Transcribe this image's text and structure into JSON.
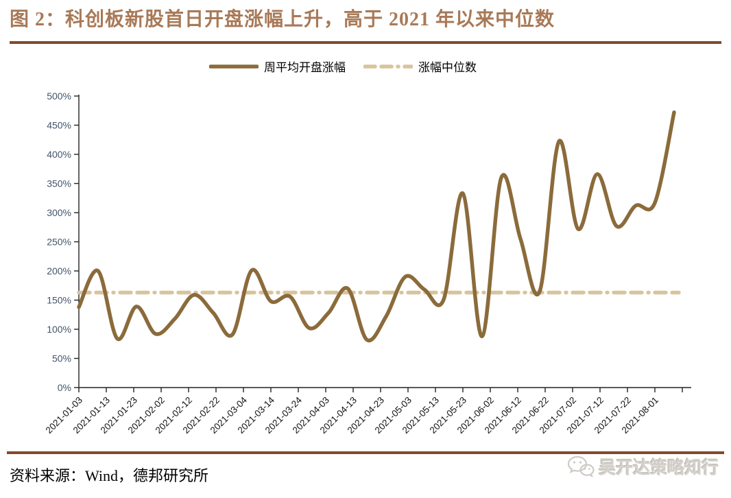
{
  "figure": {
    "title": "图 2：科创板新股首日开盘涨幅上升，高于 2021 年以来中位数",
    "title_color": "#A87957",
    "rule_color": "#82492A"
  },
  "legend": [
    {
      "label": "周平均开盘涨幅",
      "style": "solid",
      "color": "#8B6B3B"
    },
    {
      "label": "涨幅中位数",
      "style": "dashed",
      "color": "#D8C49C"
    }
  ],
  "chart_data": {
    "type": "line",
    "title": "",
    "xlabel": "",
    "ylabel": "",
    "ylim": [
      0,
      500
    ],
    "y_tick_step": 50,
    "y_tick_suffix": "%",
    "grid": false,
    "legend_position": "top-center",
    "axis_color": "#222222",
    "y_label_color": "#44546A",
    "x_label_color": "#111111",
    "x": [
      "2021-01-03",
      "2021-01-10",
      "2021-01-17",
      "2021-01-24",
      "2021-01-31",
      "2021-02-07",
      "2021-02-14",
      "2021-02-21",
      "2021-02-28",
      "2021-03-07",
      "2021-03-14",
      "2021-03-21",
      "2021-03-28",
      "2021-04-04",
      "2021-04-11",
      "2021-04-18",
      "2021-04-25",
      "2021-05-02",
      "2021-05-09",
      "2021-05-16",
      "2021-05-23",
      "2021-05-30",
      "2021-06-06",
      "2021-06-13",
      "2021-06-20",
      "2021-06-27",
      "2021-07-04",
      "2021-07-11",
      "2021-07-18",
      "2021-07-25",
      "2021-08-01",
      "2021-08-08"
    ],
    "series": [
      {
        "name": "周平均开盘涨幅",
        "style": "solid",
        "color": "#8B6B3B",
        "values": [
          138,
          200,
          84,
          139,
          92,
          118,
          159,
          128,
          91,
          201,
          148,
          156,
          102,
          128,
          170,
          82,
          122,
          190,
          168,
          151,
          333,
          88,
          360,
          255,
          165,
          422,
          272,
          366,
          277,
          312,
          317,
          472
        ]
      },
      {
        "name": "涨幅中位数",
        "style": "dashed",
        "color": "#D8C49C",
        "constant": 163
      }
    ],
    "x_tick_labels": [
      "2021-01-03",
      "2021-01-13",
      "2021-01-23",
      "2021-02-02",
      "2021-02-12",
      "2021-02-22",
      "2021-03-04",
      "2021-03-14",
      "2021-03-24",
      "2021-04-03",
      "2021-04-13",
      "2021-04-23",
      "2021-05-03",
      "2021-05-13",
      "2021-05-23",
      "2021-06-02",
      "2021-06-12",
      "2021-06-22",
      "2021-07-02",
      "2021-07-12",
      "2021-07-22",
      "2021-08-01"
    ]
  },
  "footer": {
    "source_label": "资料来源：Wind，德邦研究所",
    "watermark": "吴开达策略知行"
  }
}
